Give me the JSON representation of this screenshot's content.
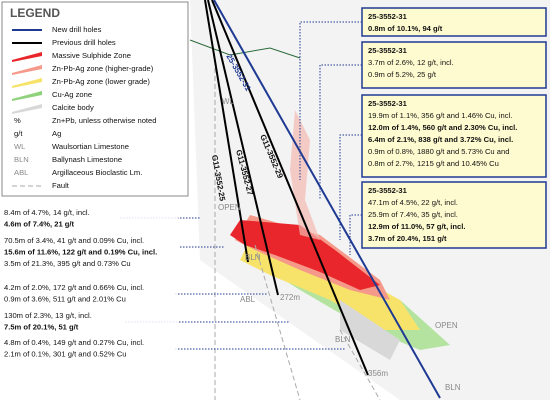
{
  "legend": {
    "title": "LEGEND",
    "items": [
      {
        "label": "New drill holes"
      },
      {
        "label": "Previous drill holes"
      },
      {
        "label": "Massive Sulphide Zone"
      },
      {
        "label": "Zn-Pb-Ag zone (higher-grade)"
      },
      {
        "label": "Zn-Pb-Ag zone (lower grade)"
      },
      {
        "label": "Cu-Ag zone"
      },
      {
        "label": "Calcite body"
      },
      {
        "symbol": "%",
        "label": "Zn+Pb, unless otherwise noted"
      },
      {
        "symbol": "g/t",
        "label": "Ag"
      },
      {
        "symbol": "WL",
        "label": "Waulsortian Limestone"
      },
      {
        "symbol": "BLN",
        "label": "Ballynash Limestone"
      },
      {
        "symbol": "ABL",
        "label": "Argillaceous Bioclastic Lm."
      },
      {
        "label": "Fault"
      }
    ]
  },
  "callouts_right": [
    {
      "hole": "25-3552-31",
      "lines": [
        "0.8m of 10.1%, 94 g/t"
      ]
    },
    {
      "hole": "25-3552-31",
      "lines": [
        "3.7m of 2.6%, 12 g/t, incl.",
        "0.9m of 5.2%, 25 g/t"
      ]
    },
    {
      "hole": "25-3552-31",
      "lines": [
        "19.9m of 1.1%, 356 g/t and 1.46% Cu, incl.",
        "12.0m of 1.4%, 560 g/t and 2.30% Cu, incl.",
        "6.4m of 2.1%, 838 g/t and 3.72% Cu, incl.",
        "0.9m of 0.8%, 1880 g/t and 5.73% Cu and",
        "0.8m of 2.7%, 1215 g/t and 10.45% Cu"
      ]
    },
    {
      "hole": "25-3552-31",
      "lines": [
        "47.1m of 4.5%, 22 g/t, incl.",
        "25.9m of 7.4%, 35 g/t, incl.",
        "12.9m of 11.0%, 57 g/t, incl.",
        "3.7m of 20.4%, 151 g/t"
      ]
    }
  ],
  "callouts_left": [
    {
      "lines": [
        "8.4m of 4.7%, 14 g/t, incl.",
        "4.6m of 7.4%, 21 g/t"
      ]
    },
    {
      "lines": [
        "70.5m of 3.4%, 41 g/t and 0.09% Cu, incl.",
        "15.6m of 11.6%, 122 g/t and 0.19% Cu, incl.",
        "3.5m of 21.3%, 395 g/t and 0.73% Cu"
      ]
    },
    {
      "lines": [
        "4.2m of 2.0%, 172 g/t and 0.66% Cu, incl.",
        "0.9m of 3.6%, 511 g/t and 2.01% Cu"
      ]
    },
    {
      "lines": [
        "130m of 2.3%, 13 g/t, incl.",
        "7.5m of 20.1%, 51 g/t"
      ]
    },
    {
      "lines": [
        "4.8m of 0.4%, 149 g/t and 0.27% Cu, incl.",
        "2.1m of 0.1%, 301 g/t and 0.52% Cu"
      ]
    }
  ],
  "hole_labels": [
    "G11-3552-25",
    "G11-3552-27",
    "G11-3552-29",
    "25-3552-31"
  ],
  "section_labels": [
    "WL",
    "OPEN",
    "BLN",
    "272m",
    "ABL",
    "BLN",
    "356m",
    "OPEN",
    "BLN"
  ]
}
